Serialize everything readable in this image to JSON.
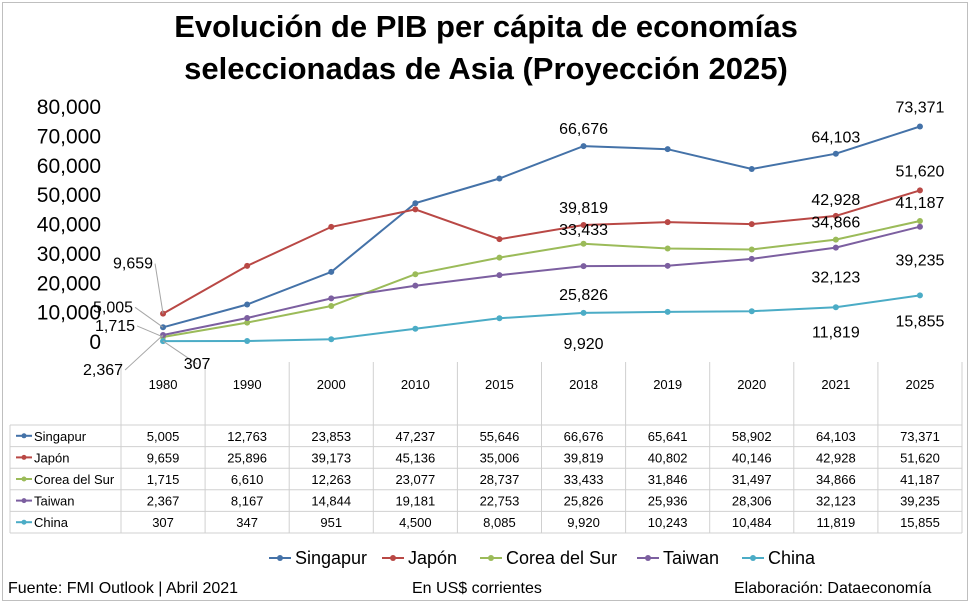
{
  "title_line1": "Evolución de PIB per cápita de economías",
  "title_line2": "seleccionadas de Asia (Proyección 2025)",
  "footer": {
    "source": "Fuente: FMI Outlook | Abril 2021",
    "units": "En US$ corrientes",
    "credit": "Elaboración: Dataeconomía"
  },
  "chart_data": {
    "type": "line",
    "title": "Evolución de PIB per cápita de economías seleccionadas de Asia (Proyección 2025)",
    "categories": [
      "1980",
      "1990",
      "2000",
      "2010",
      "2015",
      "2018",
      "2019",
      "2020",
      "2021",
      "2025"
    ],
    "ylim": [
      0,
      80000
    ],
    "yticks": [
      "0",
      "10,000",
      "20,000",
      "30,000",
      "40,000",
      "50,000",
      "60,000",
      "70,000",
      "80,000"
    ],
    "grid": false,
    "legend": "bottom",
    "data_table": true,
    "series": [
      {
        "name": "Singapur",
        "color": "#4472a8",
        "values": [
          5005,
          12763,
          23853,
          47237,
          55646,
          66676,
          65641,
          58902,
          64103,
          73371
        ],
        "labels": [
          "5,005",
          "12,763",
          "23,853",
          "47,237",
          "55,646",
          "66,676",
          "65,641",
          "58,902",
          "64,103",
          "73,371"
        ]
      },
      {
        "name": "Japón",
        "color": "#b94845",
        "values": [
          9659,
          25896,
          39173,
          45136,
          35006,
          39819,
          40802,
          40146,
          42928,
          51620
        ],
        "labels": [
          "9,659",
          "25,896",
          "39,173",
          "45,136",
          "35,006",
          "39,819",
          "40,802",
          "40,146",
          "42,928",
          "51,620"
        ]
      },
      {
        "name": "Corea del Sur",
        "color": "#9bbb59",
        "values": [
          1715,
          6610,
          12263,
          23077,
          28737,
          33433,
          31846,
          31497,
          34866,
          41187
        ],
        "labels": [
          "1,715",
          "6,610",
          "12,263",
          "23,077",
          "28,737",
          "33,433",
          "31,846",
          "31,497",
          "34,866",
          "41,187"
        ]
      },
      {
        "name": "Taiwan",
        "color": "#7c5fa0",
        "values": [
          2367,
          8167,
          14844,
          19181,
          22753,
          25826,
          25936,
          28306,
          32123,
          39235
        ],
        "labels": [
          "2,367",
          "8,167",
          "14,844",
          "19,181",
          "22,753",
          "25,826",
          "25,936",
          "28,306",
          "32,123",
          "39,235"
        ]
      },
      {
        "name": "China",
        "color": "#4bacc6",
        "values": [
          307,
          347,
          951,
          4500,
          8085,
          9920,
          10243,
          10484,
          11819,
          15855
        ],
        "labels": [
          "307",
          "347",
          "951",
          "4,500",
          "8,085",
          "9,920",
          "10,243",
          "10,484",
          "11,819",
          "15,855"
        ]
      }
    ],
    "data_labels": [
      {
        "series": 0,
        "index": 0
      },
      {
        "series": 0,
        "index": 5
      },
      {
        "series": 0,
        "index": 8
      },
      {
        "series": 0,
        "index": 9
      },
      {
        "series": 1,
        "index": 0
      },
      {
        "series": 1,
        "index": 5
      },
      {
        "series": 1,
        "index": 8
      },
      {
        "series": 1,
        "index": 9
      },
      {
        "series": 2,
        "index": 0
      },
      {
        "series": 2,
        "index": 5
      },
      {
        "series": 2,
        "index": 8
      },
      {
        "series": 2,
        "index": 9
      },
      {
        "series": 3,
        "index": 0
      },
      {
        "series": 3,
        "index": 5
      },
      {
        "series": 3,
        "index": 8
      },
      {
        "series": 3,
        "index": 9
      },
      {
        "series": 4,
        "index": 0
      },
      {
        "series": 4,
        "index": 5
      },
      {
        "series": 4,
        "index": 8
      },
      {
        "series": 4,
        "index": 9
      }
    ]
  }
}
